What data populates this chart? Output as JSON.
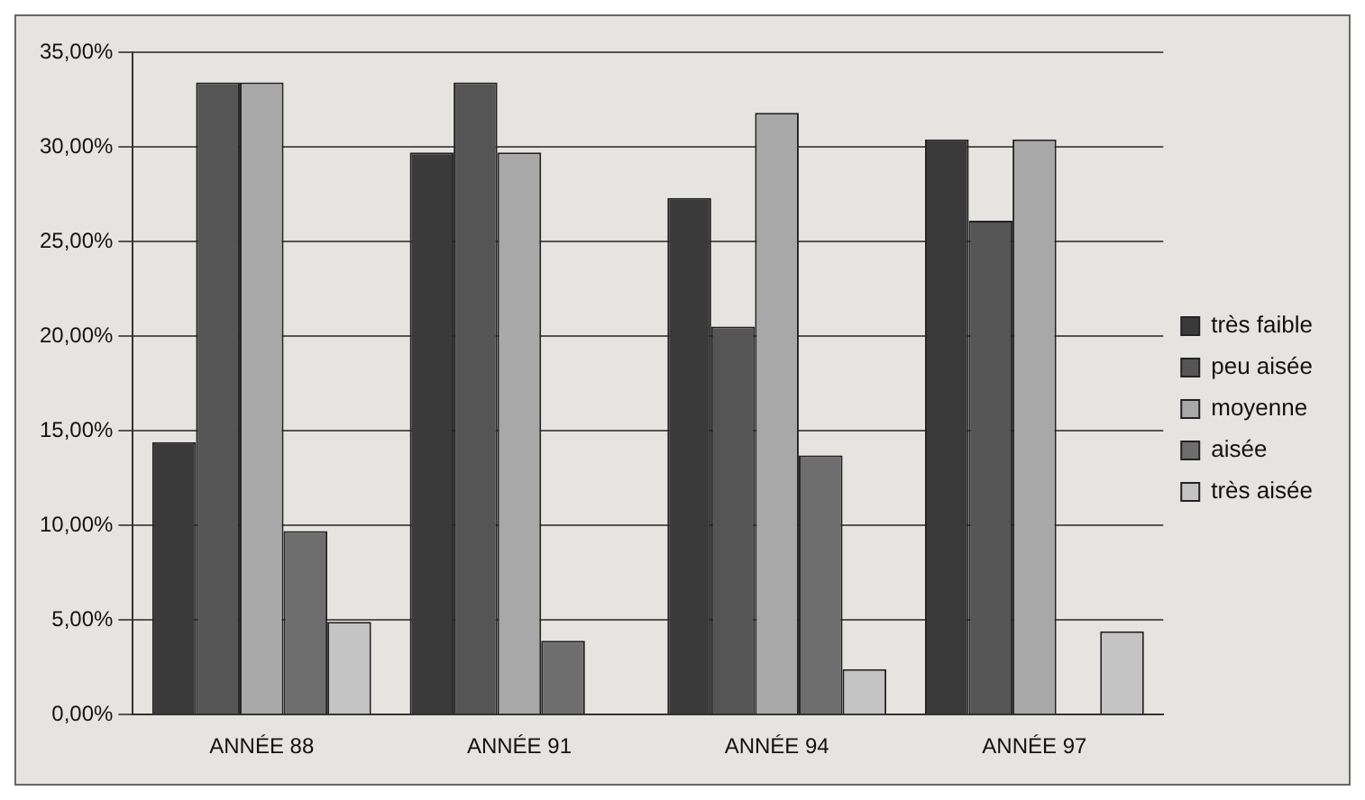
{
  "chart_data": {
    "type": "bar",
    "categories": [
      "ANNÉE 88",
      "ANNÉE 91",
      "ANNÉE 94",
      "ANNÉE 97"
    ],
    "series": [
      {
        "name": "très faible",
        "color": "#3a3a3a",
        "values": [
          14.4,
          29.7,
          27.3,
          30.4
        ]
      },
      {
        "name": "peu aisée",
        "color": "#555555",
        "values": [
          33.4,
          33.4,
          20.5,
          26.1
        ]
      },
      {
        "name": "moyenne",
        "color": "#a8a8a8",
        "values": [
          33.4,
          29.7,
          31.8,
          30.4
        ]
      },
      {
        "name": "aisée",
        "color": "#6e6e6e",
        "values": [
          9.7,
          3.9,
          13.7,
          0
        ]
      },
      {
        "name": "très aisée",
        "color": "#c4c4c4",
        "values": [
          4.9,
          0,
          2.4,
          4.4
        ]
      }
    ],
    "ylim": [
      0,
      35
    ],
    "yticks": [
      {
        "value": 0,
        "label": "0,00%"
      },
      {
        "value": 5,
        "label": "5,00%"
      },
      {
        "value": 10,
        "label": "10,00%"
      },
      {
        "value": 15,
        "label": "15,00%"
      },
      {
        "value": 20,
        "label": "20,00%"
      },
      {
        "value": 25,
        "label": "25,00%"
      },
      {
        "value": 30,
        "label": "30,00%"
      },
      {
        "value": 35,
        "label": "35,00%"
      }
    ],
    "grid": "y",
    "legend": "right"
  }
}
